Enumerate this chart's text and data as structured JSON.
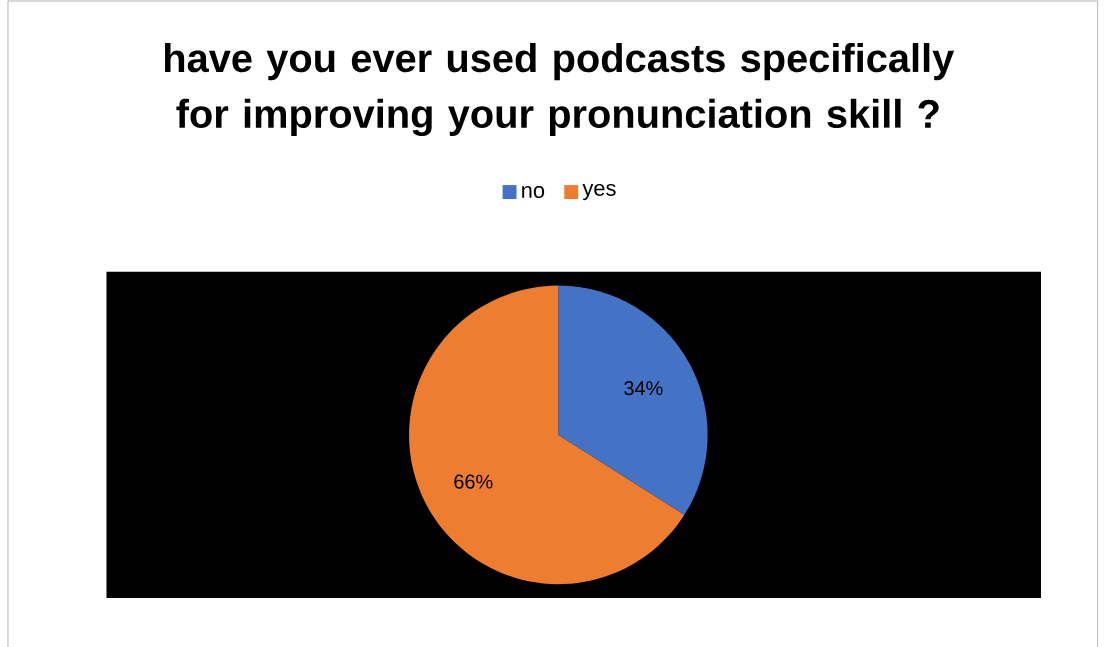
{
  "chart_data": {
    "type": "pie",
    "title": "have you ever used podcasts specifically for improving your pronunciation skill ?",
    "categories": [
      "no",
      "yes"
    ],
    "values": [
      34,
      66
    ],
    "value_labels": [
      "34%",
      "66%"
    ],
    "colors": [
      "#4472c4",
      "#ed7d31"
    ],
    "legend": "top"
  }
}
